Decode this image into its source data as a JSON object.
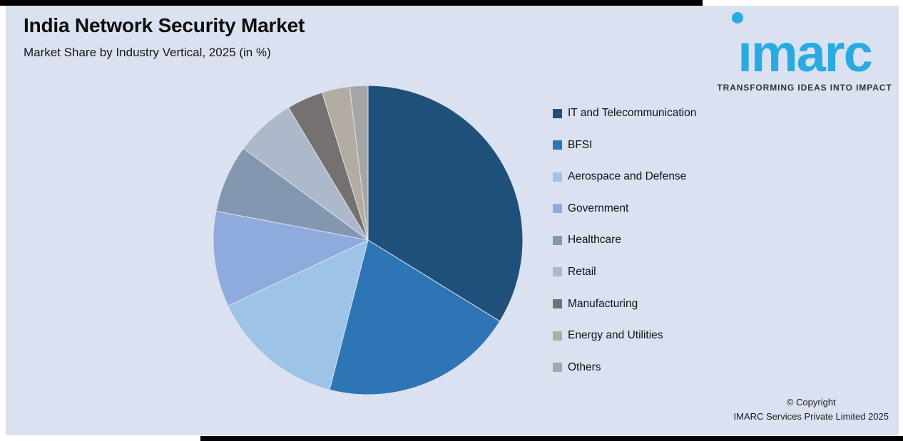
{
  "header": {
    "title": "India Network Security Market",
    "subtitle": "Market Share by Industry Vertical, 2025 (in %)"
  },
  "logo": {
    "brand": "imarc",
    "tagline": "TRANSFORMING IDEAS INTO IMPACT",
    "brand_color": "#29ABE2"
  },
  "footer": {
    "line1": "© Copyright",
    "line2": "IMARC Services Private Limited 2025"
  },
  "colors": {
    "background": "#DAE1F0",
    "accent_bar": "#000000"
  },
  "chart_data": {
    "type": "pie",
    "title": "India Network Security Market",
    "subtitle": "Market Share by Industry Vertical, 2025 (in %)",
    "unit": "%",
    "start_angle_deg": 0,
    "direction": "clockwise_from_top",
    "legend_position": "right",
    "categories": [
      "IT and Telecommunication",
      "BFSI",
      "Aerospace and Defense",
      "Government",
      "Healthcare",
      "Retail",
      "Manufacturing",
      "Energy and Utilities",
      "Others"
    ],
    "values": [
      33.8,
      20.2,
      14.0,
      10.0,
      7.1,
      6.3,
      3.8,
      2.9,
      1.9
    ],
    "colors": [
      "#1F5079",
      "#2E75B6",
      "#9DC3E6",
      "#8FAADC",
      "#8497B0",
      "#ADB9CA",
      "#767171",
      "#B2ACA2",
      "#A6A6A6"
    ]
  }
}
